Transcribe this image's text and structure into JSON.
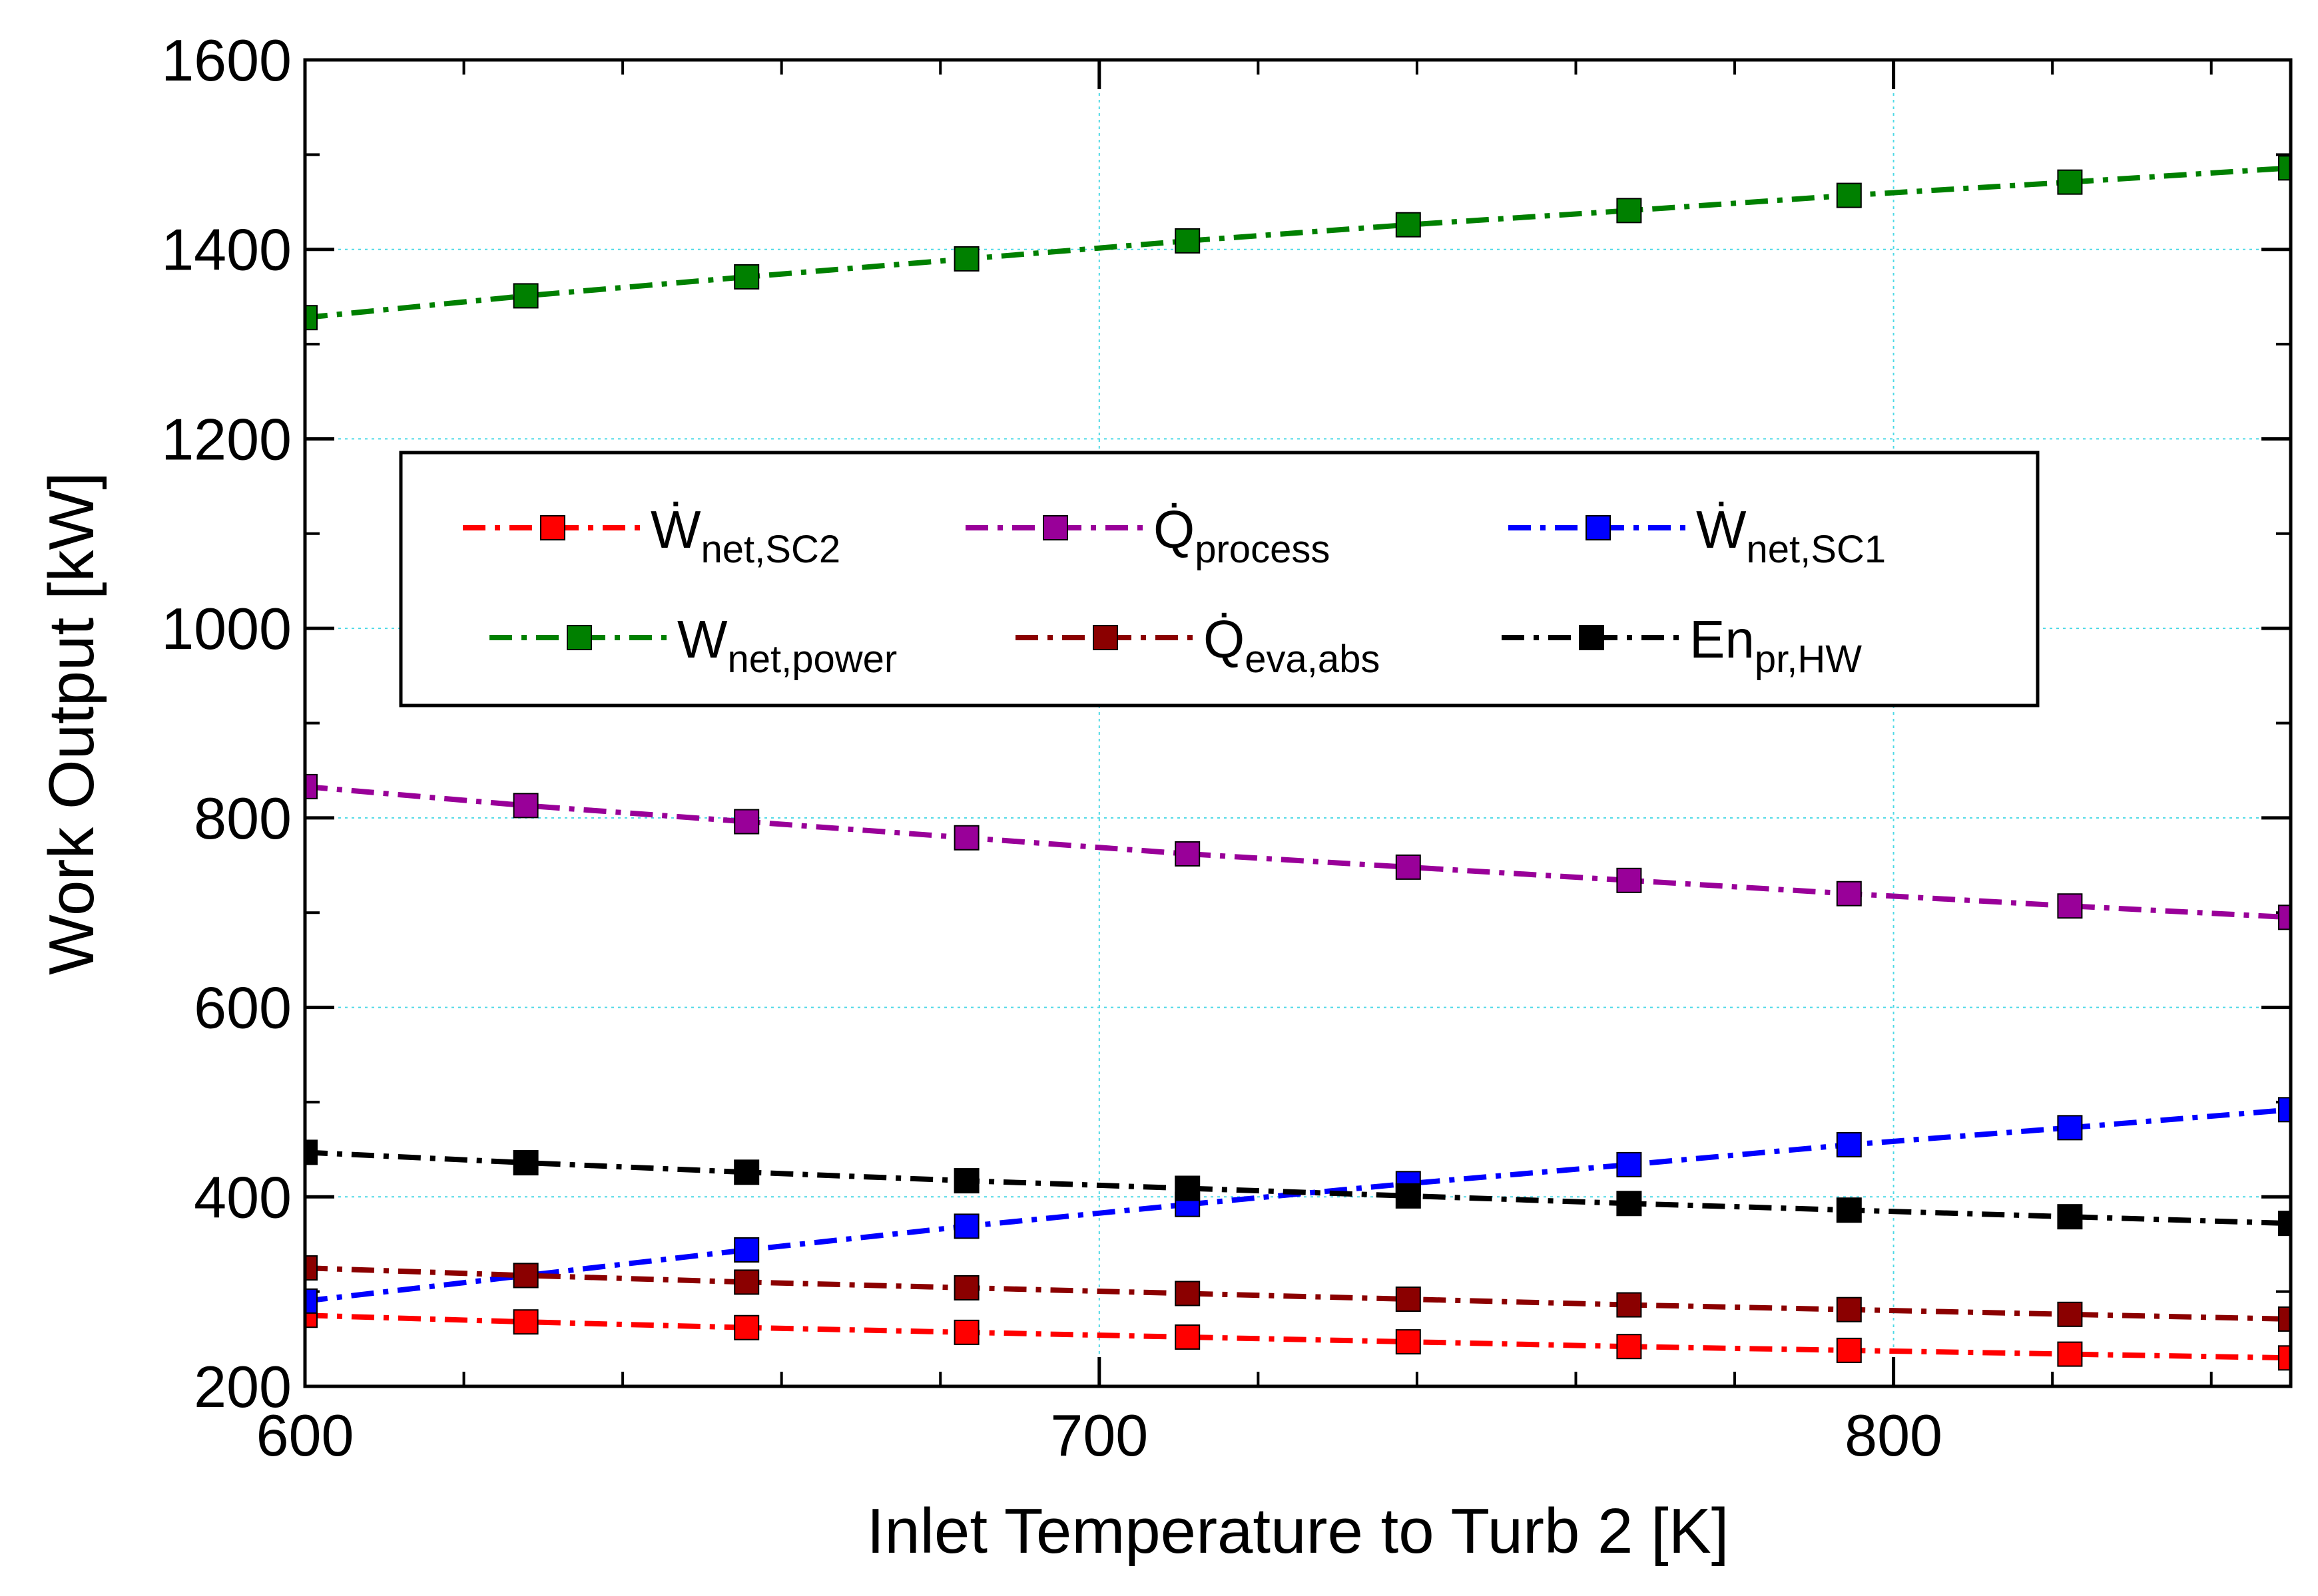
{
  "chart_data": {
    "type": "line",
    "xlabel": "Inlet Temperature to Turb 2 [K]",
    "ylabel": "Work Output [kW]",
    "xlim": [
      600,
      850
    ],
    "ylim": [
      200,
      1600
    ],
    "x_ticks": [
      600,
      700,
      800
    ],
    "y_ticks": [
      200,
      400,
      600,
      800,
      1000,
      1200,
      1400,
      1600
    ],
    "grid": true,
    "legend_position": "upper-middle, two rows of three entries",
    "x": [
      600,
      627.8,
      655.6,
      683.3,
      711.1,
      738.9,
      766.7,
      794.4,
      822.2,
      850
    ],
    "series": [
      {
        "name": "Ẇnet,SC2",
        "label_main": "Ẇ",
        "label_sub": "net,SC2",
        "color": "#ff0000",
        "values": [
          275,
          268,
          262,
          257,
          252,
          247,
          242,
          238,
          234,
          230
        ]
      },
      {
        "name": "Q̇process",
        "label_main": "Q̇",
        "label_sub": "process",
        "color": "#990099",
        "values": [
          833,
          813,
          796,
          779,
          762,
          748,
          734,
          720,
          707,
          695
        ]
      },
      {
        "name": "Ẇnet,SC1",
        "label_main": "Ẇ",
        "label_sub": "net,SC1",
        "color": "#0000ff",
        "values": [
          290,
          317,
          344,
          369,
          392,
          414,
          434,
          455,
          473,
          492
        ]
      },
      {
        "name": "Wnet,power",
        "label_main": "W",
        "label_sub": "net,power",
        "color": "#008000",
        "values": [
          1328,
          1351,
          1371,
          1390,
          1409,
          1426,
          1441,
          1457,
          1471,
          1486
        ]
      },
      {
        "name": "Q̇eva,abs",
        "label_main": "Q̇",
        "label_sub": "eva,abs",
        "color": "#8b0000",
        "values": [
          325,
          317,
          310,
          304,
          298,
          292,
          286,
          281,
          276,
          271
        ]
      },
      {
        "name": "Enpr,HW",
        "label_main": "En",
        "label_sub": "pr,HW",
        "color": "#000000",
        "values": [
          447,
          436,
          426,
          417,
          409,
          401,
          393,
          386,
          379,
          372
        ]
      }
    ]
  }
}
